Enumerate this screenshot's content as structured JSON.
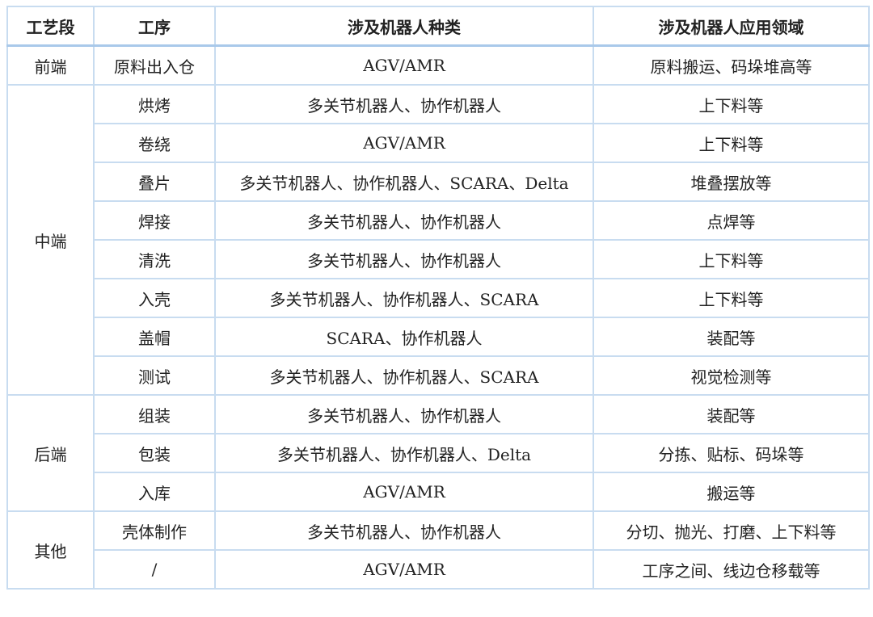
{
  "headers": [
    "工艺段",
    "工序",
    "涉及机器人种类",
    "涉及机器人应用领域"
  ],
  "sections": [
    {
      "stage": "前端",
      "rows": [
        {
          "process": "原料出入仓",
          "robots": "AGV/AMR",
          "application": "原料搬运、码垛堆高等"
        }
      ]
    },
    {
      "stage": "中端",
      "rows": [
        {
          "process": "烘烤",
          "robots": "多关节机器人、协作机器人",
          "application": "上下料等"
        },
        {
          "process": "卷绕",
          "robots": "AGV/AMR",
          "application": "上下料等"
        },
        {
          "process": "叠片",
          "robots": "多关节机器人、协作机器人、SCARA、Delta",
          "application": "堆叠摆放等"
        },
        {
          "process": "焊接",
          "robots": "多关节机器人、协作机器人",
          "application": "点焊等"
        },
        {
          "process": "清洗",
          "robots": "多关节机器人、协作机器人",
          "application": "上下料等"
        },
        {
          "process": "入壳",
          "robots": "多关节机器人、协作机器人、SCARA",
          "application": "上下料等"
        },
        {
          "process": "盖帽",
          "robots": "SCARA、协作机器人",
          "application": "装配等"
        },
        {
          "process": "测试",
          "robots": "多关节机器人、协作机器人、SCARA",
          "application": "视觉检测等"
        }
      ]
    },
    {
      "stage": "后端",
      "rows": [
        {
          "process": "组装",
          "robots": "多关节机器人、协作机器人",
          "application": "装配等"
        },
        {
          "process": "包装",
          "robots": "多关节机器人、协作机器人、Delta",
          "application": "分拣、贴标、码垛等"
        },
        {
          "process": "入库",
          "robots": "AGV/AMR",
          "application": "搬运等"
        }
      ]
    },
    {
      "stage": "其他",
      "rows": [
        {
          "process": "壳体制作",
          "robots": "多关节机器人、协作机器人",
          "application": "分切、抛光、打磨、上下料等"
        },
        {
          "process": "/",
          "robots": "AGV/AMR",
          "application": "工序之间、线边仓移载等"
        }
      ]
    }
  ]
}
